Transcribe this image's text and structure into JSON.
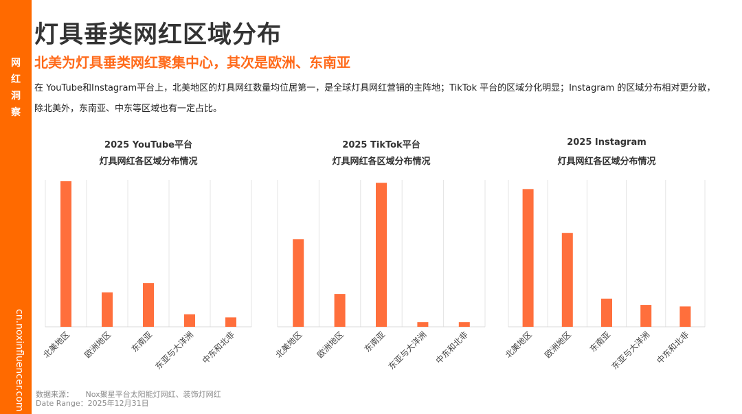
{
  "sidebar": {
    "title_chars": [
      "网",
      "红",
      "洞",
      "察"
    ],
    "url": "cn.noxinfluencer.com"
  },
  "title": "灯具垂类网红区域分布",
  "subtitle": "北美为灯具垂类网红聚集中心，其次是欧洲、东南亚",
  "description": "在 YouTube和Instagram平台上，北美地区的灯具网红数量均位居第一，是全球灯具网红营销的主阵地；TikTok 平台的区域分化明显；Instagram 的区域分布相对更分散，除北美外，东南亚、中东等区域也有一定占比。",
  "colors": {
    "accent": "#FF6A00",
    "bar": "#FF6F3C",
    "subtitle": "#FF6A1A"
  },
  "chart_data": [
    {
      "type": "bar",
      "title": "2025  YouTube平台",
      "subtitle": "灯具网红各区域分布情况",
      "categories": [
        "北美地区",
        "欧洲地区",
        "东南亚",
        "东亚与大洋洲",
        "中东和北非"
      ],
      "values": [
        93,
        22,
        28,
        8,
        6
      ],
      "ylim": [
        0,
        100
      ],
      "grid": "vertical",
      "note": "relative heights, no axis printed"
    },
    {
      "type": "bar",
      "title": "2025 TikTok平台",
      "subtitle": "灯具网红各区域分布情况",
      "categories": [
        "北美地区",
        "欧洲地区",
        "东南亚",
        "东亚与大洋洲",
        "中东和北非"
      ],
      "values": [
        56,
        21,
        92,
        3,
        3
      ],
      "ylim": [
        0,
        100
      ],
      "grid": "vertical"
    },
    {
      "type": "bar",
      "title": "2025  Instagram",
      "subtitle": "灯具网红各区域分布情况",
      "categories": [
        "北美地区",
        "欧洲地区",
        "东南亚",
        "东亚与大洋洲",
        "中东和北非"
      ],
      "values": [
        88,
        60,
        18,
        14,
        13
      ],
      "ylim": [
        0,
        100
      ],
      "grid": "vertical"
    }
  ],
  "footer": {
    "source_label": "数据来源：",
    "source": "Nox聚星平台太阳能灯网红、装饰灯网红",
    "date_label": "Date  Range：",
    "date": "2025年12月31日"
  }
}
